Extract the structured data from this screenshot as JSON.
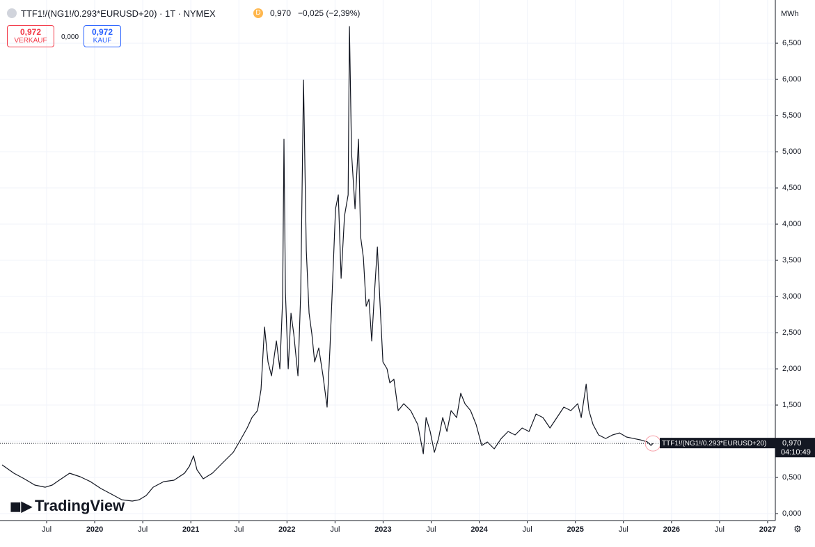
{
  "header": {
    "symbol": "TTF1!/(NG1!/0.293*EURUSD+20) · 1T · NYMEX",
    "badge": "D",
    "price": "0,970",
    "change": "−0,025 (−2,39%)",
    "sell_price": "0,972",
    "sell_label": "VERKAUF",
    "spread": "0,000",
    "buy_price": "0,972",
    "buy_label": "KAUF",
    "logo": "TradingView"
  },
  "chart_data": {
    "type": "line",
    "unit": "MWh",
    "x": [
      2019.037,
      2019.16,
      2019.268,
      2019.377,
      2019.486,
      2019.558,
      2019.631,
      2019.739,
      2019.848,
      2019.956,
      2020.065,
      2020.174,
      2020.282,
      2020.391,
      2020.463,
      2020.536,
      2020.608,
      2020.717,
      2020.825,
      2020.934,
      2020.985,
      2021.028,
      2021.064,
      2021.129,
      2021.224,
      2021.332,
      2021.441,
      2021.513,
      2021.586,
      2021.636,
      2021.694,
      2021.73,
      2021.767,
      2021.803,
      2021.839,
      2021.89,
      2021.926,
      2021.955,
      2021.969,
      2021.984,
      2022.013,
      2022.042,
      2022.071,
      2022.114,
      2022.143,
      2022.172,
      2022.201,
      2022.23,
      2022.259,
      2022.288,
      2022.331,
      2022.375,
      2022.418,
      2022.447,
      2022.476,
      2022.505,
      2022.534,
      2022.563,
      2022.599,
      2022.636,
      2022.65,
      2022.672,
      2022.708,
      2022.744,
      2022.766,
      2022.795,
      2022.824,
      2022.853,
      2022.882,
      2022.911,
      2022.94,
      2022.969,
      2022.998,
      2023.041,
      2023.07,
      2023.113,
      2023.157,
      2023.215,
      2023.287,
      2023.36,
      2023.418,
      2023.447,
      2023.49,
      2023.533,
      2023.577,
      2023.62,
      2023.664,
      2023.707,
      2023.765,
      2023.808,
      2023.852,
      2023.91,
      2023.968,
      2024.026,
      2024.084,
      2024.156,
      2024.229,
      2024.301,
      2024.373,
      2024.446,
      2024.518,
      2024.591,
      2024.663,
      2024.736,
      2024.808,
      2024.88,
      2024.953,
      2025.025,
      2025.061,
      2025.112,
      2025.141,
      2025.184,
      2025.242,
      2025.315,
      2025.387,
      2025.46,
      2025.532,
      2025.605,
      2025.677,
      2025.749,
      2025.786,
      2025.807
    ],
    "series": [
      {
        "name": "TTF1!/(NG1!/0.293*EURUSD+20)",
        "color": "#131722",
        "values": [
          0.673,
          0.558,
          0.481,
          0.394,
          0.365,
          0.394,
          0.462,
          0.558,
          0.51,
          0.442,
          0.346,
          0.269,
          0.192,
          0.173,
          0.192,
          0.25,
          0.365,
          0.442,
          0.462,
          0.558,
          0.654,
          0.798,
          0.606,
          0.481,
          0.558,
          0.702,
          0.846,
          1.01,
          1.183,
          1.327,
          1.423,
          1.712,
          2.577,
          2.096,
          1.904,
          2.385,
          2.0,
          2.962,
          5.173,
          3.058,
          2.0,
          2.769,
          2.481,
          1.904,
          3.058,
          5.99,
          3.635,
          2.769,
          2.481,
          2.096,
          2.288,
          1.904,
          1.471,
          2.288,
          3.25,
          4.212,
          4.404,
          3.25,
          4.115,
          4.404,
          6.731,
          4.981,
          4.212,
          5.173,
          3.827,
          3.538,
          2.865,
          2.962,
          2.385,
          3.058,
          3.683,
          2.865,
          2.096,
          2.0,
          1.808,
          1.856,
          1.423,
          1.519,
          1.423,
          1.231,
          0.827,
          1.327,
          1.135,
          0.846,
          1.038,
          1.327,
          1.135,
          1.423,
          1.327,
          1.663,
          1.519,
          1.423,
          1.231,
          0.942,
          0.99,
          0.894,
          1.038,
          1.135,
          1.087,
          1.183,
          1.135,
          1.375,
          1.327,
          1.183,
          1.327,
          1.471,
          1.423,
          1.519,
          1.327,
          1.788,
          1.423,
          1.231,
          1.087,
          1.038,
          1.087,
          1.115,
          1.058,
          1.038,
          1.019,
          0.99,
          0.942,
          0.97
        ]
      }
    ],
    "xlim": [
      2019.015,
      2027.08
    ],
    "ylim": [
      -0.096,
      7.02
    ],
    "xticks": [
      {
        "value": 2019.5,
        "label": "Jul"
      },
      2020,
      {
        "value": 2020.5,
        "label": "Jul"
      },
      2021,
      {
        "value": 2021.5,
        "label": "Jul"
      },
      2022,
      {
        "value": 2022.5,
        "label": "Jul"
      },
      2023,
      {
        "value": 2023.5,
        "label": "Jul"
      },
      2024,
      {
        "value": 2024.5,
        "label": "Jul"
      },
      2025,
      {
        "value": 2025.5,
        "label": "Jul"
      },
      2026,
      {
        "value": 2026.5,
        "label": "Jul"
      },
      2027
    ],
    "yticks": [
      {
        "value": 0,
        "label": "0,000"
      },
      {
        "value": 0.5,
        "label": "0,500"
      },
      {
        "value": 1,
        "label": "1,000"
      },
      {
        "value": 1.5,
        "label": "1,500"
      },
      {
        "value": 2,
        "label": "2,000"
      },
      {
        "value": 2.5,
        "label": "2,500"
      },
      {
        "value": 3,
        "label": "3,000"
      },
      {
        "value": 3.5,
        "label": "3,500"
      },
      {
        "value": 4,
        "label": "4,000"
      },
      {
        "value": 4.5,
        "label": "4,500"
      },
      {
        "value": 5,
        "label": "5,000"
      },
      {
        "value": 5.5,
        "label": "5,500"
      },
      {
        "value": 6,
        "label": "6,000"
      },
      {
        "value": 6.5,
        "label": "6,500"
      }
    ],
    "grid": true,
    "last_price": {
      "value": 0.97,
      "label": "0,970"
    },
    "countdown": "04:10:49"
  }
}
